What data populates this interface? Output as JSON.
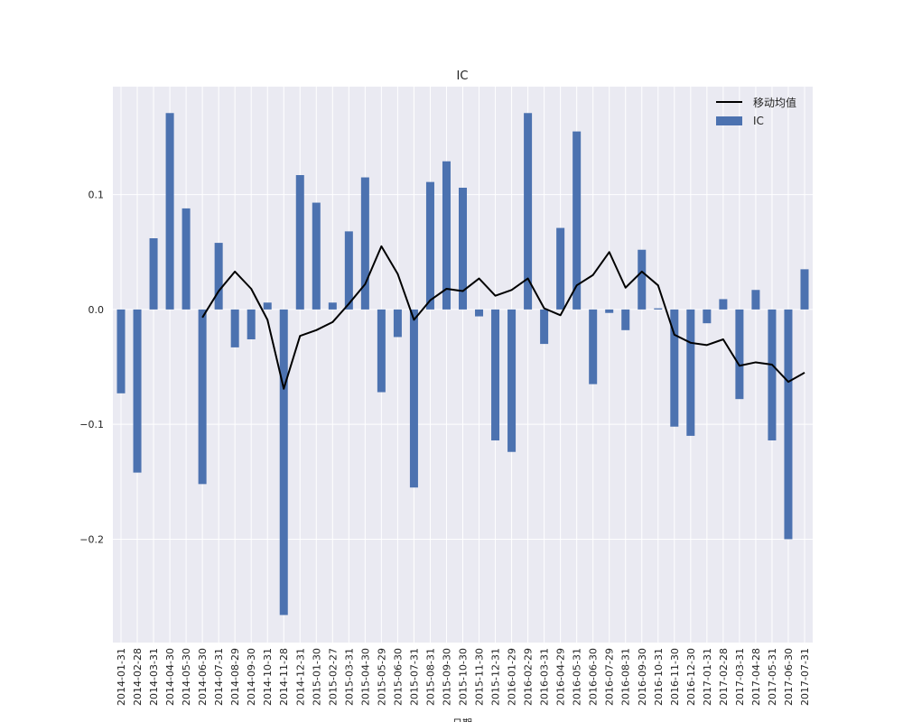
{
  "chart_data": {
    "type": "bar",
    "title": "IC",
    "xlabel": "日期",
    "ylabel": "",
    "ylim": [
      -0.29,
      0.194
    ],
    "yticks": [
      0.1,
      0.0,
      -0.1,
      -0.2
    ],
    "ytick_labels": [
      "0.1",
      "0.0",
      "−0.1",
      "−0.2"
    ],
    "grid": true,
    "legend": {
      "position": "top-right",
      "entries": [
        "移动均值",
        "IC"
      ]
    },
    "colors": {
      "bar": "#4c72b0",
      "line": "#000000",
      "plot_bg": "#eaeaf2",
      "grid": "#ffffff"
    },
    "categories": [
      "2014-01-31",
      "2014-02-28",
      "2014-03-31",
      "2014-04-30",
      "2014-05-30",
      "2014-06-30",
      "2014-07-31",
      "2014-08-29",
      "2014-09-30",
      "2014-10-31",
      "2014-11-28",
      "2014-12-31",
      "2015-01-30",
      "2015-02-27",
      "2015-03-31",
      "2015-04-30",
      "2015-05-29",
      "2015-06-30",
      "2015-07-31",
      "2015-08-31",
      "2015-09-30",
      "2015-10-30",
      "2015-11-30",
      "2015-12-31",
      "2016-01-29",
      "2016-02-29",
      "2016-03-31",
      "2016-04-29",
      "2016-05-31",
      "2016-06-30",
      "2016-07-29",
      "2016-08-31",
      "2016-09-30",
      "2016-10-31",
      "2016-11-30",
      "2016-12-30",
      "2017-01-31",
      "2017-02-28",
      "2017-03-31",
      "2017-04-28",
      "2017-05-31",
      "2017-06-30",
      "2017-07-31"
    ],
    "series": [
      {
        "name": "IC",
        "kind": "bar",
        "values": [
          -0.073,
          -0.142,
          0.062,
          0.171,
          0.088,
          -0.152,
          0.058,
          -0.033,
          -0.026,
          0.006,
          -0.266,
          0.117,
          0.093,
          0.006,
          0.068,
          0.115,
          -0.072,
          -0.024,
          -0.155,
          0.111,
          0.129,
          0.106,
          -0.006,
          -0.114,
          -0.124,
          0.171,
          -0.03,
          0.071,
          0.155,
          -0.065,
          -0.003,
          -0.018,
          0.052,
          0.001,
          -0.102,
          -0.11,
          -0.012,
          0.009,
          -0.078,
          0.017,
          -0.114,
          -0.2,
          0.035
        ]
      },
      {
        "name": "移动均值",
        "kind": "line",
        "values": [
          null,
          null,
          null,
          null,
          null,
          -0.007,
          0.016,
          0.033,
          0.018,
          -0.009,
          -0.069,
          -0.023,
          -0.018,
          -0.011,
          0.005,
          0.022,
          0.055,
          0.031,
          -0.009,
          0.008,
          0.018,
          0.016,
          0.027,
          0.012,
          0.017,
          0.027,
          0.001,
          -0.005,
          0.021,
          0.03,
          0.05,
          0.019,
          0.033,
          0.021,
          -0.022,
          -0.029,
          -0.031,
          -0.026,
          -0.049,
          -0.046,
          -0.048,
          -0.063,
          -0.055
        ]
      }
    ]
  }
}
